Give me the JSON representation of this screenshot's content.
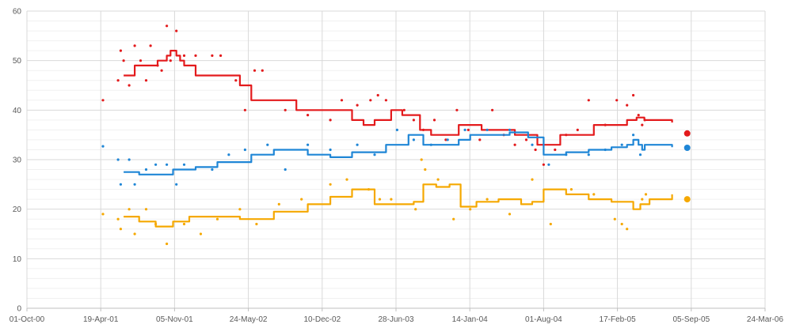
{
  "chart_data": {
    "type": "line",
    "title": "",
    "xlabel": "",
    "ylabel": "",
    "x_tick_labels": [
      "01-Oct-00",
      "19-Apr-01",
      "05-Nov-01",
      "24-May-02",
      "10-Dec-02",
      "28-Jun-03",
      "14-Jan-04",
      "01-Aug-04",
      "17-Feb-05",
      "05-Sep-05",
      "24-Mar-06"
    ],
    "xlim": [
      "2000-10-01",
      "2006-03-24"
    ],
    "ylim": [
      0,
      60
    ],
    "y_ticks": [
      0,
      10,
      20,
      30,
      40,
      50,
      60
    ],
    "grid": "major and minor horizontal, major vertical",
    "legend": "none",
    "series": [
      {
        "color": "#e31a1c",
        "trend": [
          [
            "2001-06-20",
            47
          ],
          [
            "2001-07-20",
            49
          ],
          [
            "2001-08-20",
            49
          ],
          [
            "2001-09-20",
            50
          ],
          [
            "2001-10-15",
            51
          ],
          [
            "2001-10-25",
            52
          ],
          [
            "2001-11-10",
            51
          ],
          [
            "2001-11-20",
            50
          ],
          [
            "2001-12-01",
            49
          ],
          [
            "2002-01-01",
            47
          ],
          [
            "2002-03-01",
            47
          ],
          [
            "2002-05-01",
            45
          ],
          [
            "2002-06-01",
            42
          ],
          [
            "2002-08-01",
            42
          ],
          [
            "2002-10-01",
            40
          ],
          [
            "2002-11-15",
            40
          ],
          [
            "2003-01-15",
            40
          ],
          [
            "2003-03-01",
            38
          ],
          [
            "2003-04-01",
            37
          ],
          [
            "2003-05-01",
            38
          ],
          [
            "2003-06-15",
            40
          ],
          [
            "2003-07-15",
            39
          ],
          [
            "2003-09-01",
            36
          ],
          [
            "2003-10-01",
            35
          ],
          [
            "2003-11-01",
            35
          ],
          [
            "2003-12-15",
            37
          ],
          [
            "2004-01-15",
            37
          ],
          [
            "2004-02-15",
            36
          ],
          [
            "2004-04-01",
            36
          ],
          [
            "2004-05-15",
            35
          ],
          [
            "2004-06-15",
            35
          ],
          [
            "2004-07-15",
            33
          ],
          [
            "2004-08-15",
            33
          ],
          [
            "2004-09-15",
            35
          ],
          [
            "2004-11-01",
            35
          ],
          [
            "2004-12-15",
            37
          ],
          [
            "2005-02-01",
            37
          ],
          [
            "2005-03-15",
            38
          ],
          [
            "2005-04-10",
            38.5
          ],
          [
            "2005-05-01",
            38
          ],
          [
            "2005-07-15",
            37.5
          ]
        ],
        "points": [
          [
            "2001-04-25",
            42
          ],
          [
            "2001-06-05",
            46
          ],
          [
            "2001-06-12",
            52
          ],
          [
            "2001-06-20",
            50
          ],
          [
            "2001-07-05",
            45
          ],
          [
            "2001-07-20",
            53
          ],
          [
            "2001-08-05",
            50
          ],
          [
            "2001-08-20",
            46
          ],
          [
            "2001-09-01",
            53
          ],
          [
            "2001-09-20",
            49
          ],
          [
            "2001-10-01",
            48
          ],
          [
            "2001-10-15",
            57
          ],
          [
            "2001-10-25",
            50
          ],
          [
            "2001-11-10",
            56
          ],
          [
            "2001-12-01",
            51
          ],
          [
            "2002-01-01",
            51
          ],
          [
            "2002-02-15",
            51
          ],
          [
            "2002-03-10",
            51
          ],
          [
            "2002-04-20",
            46
          ],
          [
            "2002-05-15",
            40
          ],
          [
            "2002-06-10",
            48
          ],
          [
            "2002-07-01",
            48
          ],
          [
            "2002-09-01",
            40
          ],
          [
            "2002-11-01",
            39
          ],
          [
            "2003-01-01",
            38
          ],
          [
            "2003-02-01",
            42
          ],
          [
            "2003-03-15",
            41
          ],
          [
            "2003-04-20",
            42
          ],
          [
            "2003-05-10",
            43
          ],
          [
            "2003-06-01",
            42
          ],
          [
            "2003-07-20",
            40
          ],
          [
            "2003-08-15",
            38
          ],
          [
            "2003-09-10",
            36
          ],
          [
            "2003-10-10",
            38
          ],
          [
            "2003-11-10",
            34
          ],
          [
            "2003-12-10",
            40
          ],
          [
            "2004-01-10",
            36
          ],
          [
            "2004-02-10",
            34
          ],
          [
            "2004-03-15",
            40
          ],
          [
            "2004-04-15",
            35
          ],
          [
            "2004-05-15",
            33
          ],
          [
            "2004-06-15",
            34
          ],
          [
            "2004-07-10",
            32
          ],
          [
            "2004-08-01",
            29
          ],
          [
            "2004-09-01",
            32
          ],
          [
            "2004-10-01",
            35
          ],
          [
            "2004-11-01",
            36
          ],
          [
            "2004-12-01",
            42
          ],
          [
            "2005-01-15",
            37
          ],
          [
            "2005-02-15",
            42
          ],
          [
            "2005-03-15",
            41
          ],
          [
            "2005-04-01",
            43
          ],
          [
            "2005-04-15",
            39
          ],
          [
            "2005-04-25",
            37
          ],
          [
            "2005-05-02",
            38
          ]
        ],
        "final": [
          "2005-08-25",
          35.3
        ]
      },
      {
        "color": "#1f86d6",
        "trend": [
          [
            "2001-06-20",
            27.5
          ],
          [
            "2001-08-01",
            27
          ],
          [
            "2001-11-01",
            28
          ],
          [
            "2002-01-01",
            28.5
          ],
          [
            "2002-03-01",
            29.5
          ],
          [
            "2002-06-01",
            31
          ],
          [
            "2002-08-01",
            32
          ],
          [
            "2002-11-01",
            31
          ],
          [
            "2003-01-01",
            30.5
          ],
          [
            "2003-03-01",
            31.5
          ],
          [
            "2003-06-01",
            33
          ],
          [
            "2003-08-01",
            35
          ],
          [
            "2003-09-10",
            33
          ],
          [
            "2003-11-01",
            33
          ],
          [
            "2003-12-15",
            34
          ],
          [
            "2004-01-15",
            35
          ],
          [
            "2004-03-01",
            35
          ],
          [
            "2004-05-01",
            35.5
          ],
          [
            "2004-06-20",
            34.5
          ],
          [
            "2004-08-01",
            31
          ],
          [
            "2004-10-01",
            31.5
          ],
          [
            "2004-12-01",
            32
          ],
          [
            "2005-02-01",
            32.5
          ],
          [
            "2005-03-15",
            33
          ],
          [
            "2005-04-01",
            34
          ],
          [
            "2005-04-15",
            33
          ],
          [
            "2005-04-25",
            32
          ],
          [
            "2005-05-02",
            33
          ],
          [
            "2005-07-15",
            32.5
          ]
        ],
        "points": [
          [
            "2001-04-25",
            32.7
          ],
          [
            "2001-06-05",
            30
          ],
          [
            "2001-06-12",
            25
          ],
          [
            "2001-07-05",
            30
          ],
          [
            "2001-07-20",
            25
          ],
          [
            "2001-08-20",
            28
          ],
          [
            "2001-09-15",
            29
          ],
          [
            "2001-10-15",
            29
          ],
          [
            "2001-11-10",
            25
          ],
          [
            "2001-12-01",
            29
          ],
          [
            "2002-02-15",
            28
          ],
          [
            "2002-04-01",
            31
          ],
          [
            "2002-05-15",
            32
          ],
          [
            "2002-07-15",
            33
          ],
          [
            "2002-09-01",
            28
          ],
          [
            "2002-11-01",
            33
          ],
          [
            "2003-01-01",
            32
          ],
          [
            "2003-03-15",
            33
          ],
          [
            "2003-05-01",
            31
          ],
          [
            "2003-07-01",
            36
          ],
          [
            "2003-08-15",
            34
          ],
          [
            "2003-10-01",
            33
          ],
          [
            "2003-11-15",
            34
          ],
          [
            "2004-01-01",
            36
          ],
          [
            "2004-03-01",
            36
          ],
          [
            "2004-05-01",
            36
          ],
          [
            "2004-07-01",
            33
          ],
          [
            "2004-08-15",
            29
          ],
          [
            "2004-10-01",
            31
          ],
          [
            "2004-12-01",
            31
          ],
          [
            "2005-01-15",
            32
          ],
          [
            "2005-03-01",
            33
          ],
          [
            "2005-04-01",
            35
          ],
          [
            "2005-04-20",
            31
          ]
        ],
        "final": [
          "2005-08-25",
          32.4
        ]
      },
      {
        "color": "#f5a800",
        "trend": [
          [
            "2001-06-20",
            18.5
          ],
          [
            "2001-08-01",
            17.5
          ],
          [
            "2001-09-15",
            16.5
          ],
          [
            "2001-11-01",
            17.5
          ],
          [
            "2001-12-15",
            18.5
          ],
          [
            "2002-02-01",
            18.5
          ],
          [
            "2002-05-01",
            18
          ],
          [
            "2002-08-01",
            19.5
          ],
          [
            "2002-11-01",
            21
          ],
          [
            "2003-01-01",
            22.5
          ],
          [
            "2003-03-01",
            24
          ],
          [
            "2003-05-01",
            21
          ],
          [
            "2003-07-01",
            21
          ],
          [
            "2003-08-15",
            21.5
          ],
          [
            "2003-09-10",
            25
          ],
          [
            "2003-10-15",
            24.5
          ],
          [
            "2003-11-20",
            25
          ],
          [
            "2003-12-20",
            20.5
          ],
          [
            "2004-02-01",
            21.5
          ],
          [
            "2004-04-01",
            22
          ],
          [
            "2004-06-01",
            21
          ],
          [
            "2004-07-01",
            21.5
          ],
          [
            "2004-08-01",
            24
          ],
          [
            "2004-10-01",
            23
          ],
          [
            "2004-12-01",
            22
          ],
          [
            "2005-02-01",
            21.5
          ],
          [
            "2005-04-01",
            20
          ],
          [
            "2005-04-20",
            21
          ],
          [
            "2005-05-15",
            22
          ],
          [
            "2005-07-15",
            23
          ]
        ],
        "points": [
          [
            "2001-04-25",
            19
          ],
          [
            "2001-06-05",
            18
          ],
          [
            "2001-06-12",
            16
          ],
          [
            "2001-07-05",
            20
          ],
          [
            "2001-07-20",
            15
          ],
          [
            "2001-08-20",
            20
          ],
          [
            "2001-09-15",
            17
          ],
          [
            "2001-10-15",
            13
          ],
          [
            "2001-12-01",
            17
          ],
          [
            "2002-01-15",
            15
          ],
          [
            "2002-03-01",
            18
          ],
          [
            "2002-05-01",
            20
          ],
          [
            "2002-06-15",
            17
          ],
          [
            "2002-08-15",
            21
          ],
          [
            "2002-10-15",
            22
          ],
          [
            "2003-01-01",
            25
          ],
          [
            "2003-02-15",
            26
          ],
          [
            "2003-04-15",
            24
          ],
          [
            "2003-05-15",
            22
          ],
          [
            "2003-06-15",
            22
          ],
          [
            "2003-08-20",
            20
          ],
          [
            "2003-09-05",
            30
          ],
          [
            "2003-09-15",
            28
          ],
          [
            "2003-10-20",
            26
          ],
          [
            "2003-12-01",
            18
          ],
          [
            "2004-01-15",
            20
          ],
          [
            "2004-03-01",
            22
          ],
          [
            "2004-05-01",
            19
          ],
          [
            "2004-07-01",
            26
          ],
          [
            "2004-08-20",
            17
          ],
          [
            "2004-10-15",
            24
          ],
          [
            "2004-12-15",
            23
          ],
          [
            "2005-02-10",
            18
          ],
          [
            "2005-03-01",
            17
          ],
          [
            "2005-03-15",
            16
          ],
          [
            "2005-04-25",
            22
          ],
          [
            "2005-05-05",
            23
          ]
        ],
        "final": [
          "2005-08-25",
          22
        ]
      }
    ]
  }
}
